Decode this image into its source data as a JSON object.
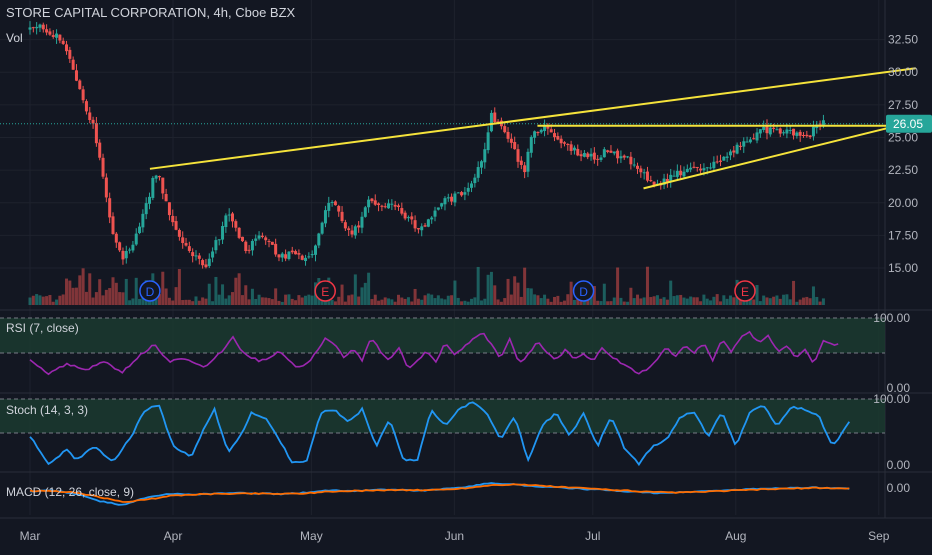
{
  "header": {
    "symbol_line": "STORE CAPITAL CORPORATION, 4h, Cboe BZX",
    "vol_label": "Vol"
  },
  "colors": {
    "background": "#131722",
    "grid": "#1e222d",
    "axis_text": "#b2b5be",
    "bull": "#26a69a",
    "bear": "#ef5350",
    "trendline": "#f5e33b",
    "price_tag_bg": "#26a69a",
    "rsi_line": "#9c27b0",
    "stoch_line": "#2196f3",
    "macd_line": "#2196f3",
    "signal_line": "#ff6d00",
    "band_fill": "#1b3a2f"
  },
  "events": [
    {
      "label": "D",
      "date": "Mar 27",
      "type": "dividend"
    },
    {
      "label": "E",
      "date": "May 4",
      "type": "earnings"
    },
    {
      "label": "D",
      "date": "Jun 29",
      "type": "dividend"
    },
    {
      "label": "E",
      "date": "Aug 3",
      "type": "earnings"
    }
  ],
  "panes": {
    "rsi": {
      "label": "RSI (7, close)",
      "ticks": [
        "100.00",
        "0.00"
      ]
    },
    "stoch": {
      "label": "Stoch (14, 3, 3)",
      "ticks": [
        "100.00",
        "0.00"
      ]
    },
    "macd": {
      "label": "MACD (12, 26, close, 9)",
      "ticks": [
        "0.00"
      ]
    }
  },
  "chart_data": {
    "type": "candlestick",
    "title": "STORE CAPITAL CORPORATION, 4h, Cboe BZX",
    "x_ticks": [
      "Mar",
      "Apr",
      "May",
      "Jun",
      "Jul",
      "Aug",
      "Sep"
    ],
    "y_ticks": [
      "32.50",
      "30.00",
      "27.50",
      "25.00",
      "22.50",
      "20.00",
      "17.50",
      "15.00"
    ],
    "ylim": [
      13.7,
      34.0
    ],
    "last_price": "26.05",
    "x_range_days": [
      0,
      194
    ],
    "x_tick_days": [
      0,
      31,
      61,
      92,
      122,
      153,
      184
    ],
    "price_anchors": [
      [
        0,
        33.2
      ],
      [
        3,
        33.5
      ],
      [
        6,
        32.6
      ],
      [
        8,
        31.5
      ],
      [
        10,
        29.5
      ],
      [
        12,
        27.5
      ],
      [
        14,
        25.5
      ],
      [
        16,
        21.5
      ],
      [
        18,
        17.5
      ],
      [
        20,
        15.6
      ],
      [
        22,
        16.8
      ],
      [
        24,
        18.5
      ],
      [
        26,
        20.5
      ],
      [
        27,
        22.3
      ],
      [
        28,
        21.8
      ],
      [
        30,
        19.2
      ],
      [
        32,
        17.9
      ],
      [
        34,
        16.6
      ],
      [
        36,
        15.9
      ],
      [
        38,
        15.2
      ],
      [
        40,
        16.7
      ],
      [
        42,
        18.2
      ],
      [
        43,
        19.5
      ],
      [
        45,
        17.5
      ],
      [
        47,
        16.2
      ],
      [
        49,
        17.4
      ],
      [
        51,
        17.1
      ],
      [
        53,
        16.3
      ],
      [
        55,
        15.9
      ],
      [
        57,
        16.0
      ],
      [
        59,
        15.7
      ],
      [
        61,
        16.2
      ],
      [
        63,
        17.9
      ],
      [
        65,
        20.3
      ],
      [
        66,
        19.7
      ],
      [
        68,
        18.4
      ],
      [
        70,
        17.6
      ],
      [
        72,
        18.9
      ],
      [
        74,
        20.4
      ],
      [
        76,
        19.3
      ],
      [
        78,
        20.2
      ],
      [
        80,
        19.6
      ],
      [
        82,
        18.7
      ],
      [
        84,
        18.1
      ],
      [
        86,
        18.4
      ],
      [
        88,
        19.2
      ],
      [
        90,
        20.1
      ],
      [
        92,
        20.4
      ],
      [
        94,
        20.9
      ],
      [
        96,
        21.8
      ],
      [
        98,
        23.4
      ],
      [
        100,
        26.6
      ],
      [
        101,
        26.1
      ],
      [
        103,
        25.3
      ],
      [
        105,
        24.2
      ],
      [
        107,
        22.1
      ],
      [
        109,
        25.3
      ],
      [
        111,
        25.9
      ],
      [
        113,
        25.4
      ],
      [
        115,
        24.6
      ],
      [
        117,
        24.3
      ],
      [
        119,
        23.6
      ],
      [
        121,
        23.8
      ],
      [
        123,
        23.5
      ],
      [
        125,
        24.0
      ],
      [
        127,
        23.7
      ],
      [
        129,
        23.4
      ],
      [
        131,
        23.0
      ],
      [
        133,
        22.1
      ],
      [
        135,
        21.4
      ],
      [
        137,
        21.6
      ],
      [
        139,
        22.0
      ],
      [
        141,
        22.3
      ],
      [
        143,
        22.5
      ],
      [
        145,
        22.4
      ],
      [
        147,
        22.7
      ],
      [
        149,
        23.0
      ],
      [
        151,
        23.5
      ],
      [
        153,
        24.1
      ],
      [
        155,
        24.5
      ],
      [
        157,
        25.0
      ],
      [
        159,
        25.6
      ],
      [
        161,
        25.5
      ],
      [
        163,
        25.4
      ],
      [
        165,
        25.3
      ],
      [
        167,
        25.1
      ],
      [
        169,
        25.0
      ],
      [
        170,
        25.9
      ],
      [
        172,
        26.05
      ]
    ],
    "trendlines": [
      {
        "from": {
          "day": 26,
          "price": 22.6
        },
        "to": {
          "day": 192,
          "price": 30.3
        }
      },
      {
        "from": {
          "day": 110,
          "price": 25.9
        },
        "to": {
          "day": 188,
          "price": 25.9
        }
      },
      {
        "from": {
          "day": 133,
          "price": 21.1
        },
        "to": {
          "day": 188,
          "price": 25.9
        }
      }
    ],
    "rsi_anchors": [
      [
        0,
        40
      ],
      [
        4,
        20
      ],
      [
        8,
        35
      ],
      [
        12,
        25
      ],
      [
        16,
        38
      ],
      [
        20,
        22
      ],
      [
        24,
        48
      ],
      [
        27,
        62
      ],
      [
        30,
        38
      ],
      [
        34,
        42
      ],
      [
        38,
        30
      ],
      [
        42,
        55
      ],
      [
        44,
        72
      ],
      [
        46,
        50
      ],
      [
        50,
        38
      ],
      [
        54,
        52
      ],
      [
        58,
        28
      ],
      [
        60,
        35
      ],
      [
        62,
        50
      ],
      [
        64,
        70
      ],
      [
        66,
        62
      ],
      [
        68,
        45
      ],
      [
        70,
        55
      ],
      [
        72,
        40
      ],
      [
        74,
        72
      ],
      [
        76,
        52
      ],
      [
        78,
        40
      ],
      [
        80,
        58
      ],
      [
        82,
        28
      ],
      [
        84,
        40
      ],
      [
        86,
        52
      ],
      [
        88,
        38
      ],
      [
        90,
        64
      ],
      [
        92,
        48
      ],
      [
        94,
        58
      ],
      [
        96,
        70
      ],
      [
        98,
        80
      ],
      [
        100,
        62
      ],
      [
        102,
        42
      ],
      [
        104,
        70
      ],
      [
        106,
        34
      ],
      [
        108,
        48
      ],
      [
        110,
        66
      ],
      [
        112,
        52
      ],
      [
        114,
        40
      ],
      [
        116,
        54
      ],
      [
        118,
        42
      ],
      [
        120,
        50
      ],
      [
        122,
        38
      ],
      [
        124,
        58
      ],
      [
        126,
        46
      ],
      [
        128,
        36
      ],
      [
        130,
        30
      ],
      [
        132,
        20
      ],
      [
        134,
        28
      ],
      [
        136,
        42
      ],
      [
        138,
        58
      ],
      [
        140,
        44
      ],
      [
        142,
        62
      ],
      [
        144,
        50
      ],
      [
        146,
        64
      ],
      [
        148,
        40
      ],
      [
        150,
        70
      ],
      [
        152,
        50
      ],
      [
        154,
        72
      ],
      [
        156,
        80
      ],
      [
        158,
        64
      ],
      [
        160,
        76
      ],
      [
        162,
        52
      ],
      [
        164,
        60
      ],
      [
        166,
        44
      ],
      [
        168,
        56
      ],
      [
        170,
        34
      ],
      [
        172,
        68
      ],
      [
        174,
        62
      ],
      [
        176,
        64
      ]
    ],
    "stoch_anchors": [
      [
        0,
        45
      ],
      [
        4,
        5
      ],
      [
        8,
        25
      ],
      [
        10,
        10
      ],
      [
        14,
        30
      ],
      [
        18,
        8
      ],
      [
        22,
        45
      ],
      [
        25,
        85
      ],
      [
        28,
        90
      ],
      [
        31,
        30
      ],
      [
        35,
        15
      ],
      [
        38,
        60
      ],
      [
        40,
        85
      ],
      [
        43,
        20
      ],
      [
        46,
        50
      ],
      [
        48,
        80
      ],
      [
        51,
        72
      ],
      [
        54,
        40
      ],
      [
        57,
        5
      ],
      [
        60,
        10
      ],
      [
        63,
        80
      ],
      [
        66,
        85
      ],
      [
        69,
        65
      ],
      [
        72,
        85
      ],
      [
        75,
        30
      ],
      [
        78,
        70
      ],
      [
        81,
        10
      ],
      [
        84,
        10
      ],
      [
        87,
        85
      ],
      [
        90,
        60
      ],
      [
        93,
        85
      ],
      [
        96,
        95
      ],
      [
        99,
        80
      ],
      [
        102,
        40
      ],
      [
        105,
        75
      ],
      [
        108,
        10
      ],
      [
        111,
        60
      ],
      [
        114,
        80
      ],
      [
        117,
        45
      ],
      [
        120,
        80
      ],
      [
        123,
        30
      ],
      [
        126,
        75
      ],
      [
        129,
        25
      ],
      [
        132,
        5
      ],
      [
        135,
        30
      ],
      [
        138,
        40
      ],
      [
        141,
        75
      ],
      [
        144,
        80
      ],
      [
        147,
        45
      ],
      [
        150,
        82
      ],
      [
        153,
        30
      ],
      [
        156,
        80
      ],
      [
        159,
        90
      ],
      [
        162,
        60
      ],
      [
        165,
        88
      ],
      [
        168,
        85
      ],
      [
        171,
        75
      ],
      [
        174,
        30
      ],
      [
        176,
        50
      ],
      [
        178,
        70
      ]
    ],
    "macd_anchors": [
      [
        0,
        -0.15
      ],
      [
        5,
        -0.05
      ],
      [
        10,
        -0.4
      ],
      [
        15,
        -1.1
      ],
      [
        20,
        -1.5
      ],
      [
        25,
        -0.8
      ],
      [
        30,
        -0.4
      ],
      [
        35,
        -0.45
      ],
      [
        40,
        -0.35
      ],
      [
        45,
        -0.3
      ],
      [
        50,
        -0.35
      ],
      [
        55,
        -0.4
      ],
      [
        60,
        -0.25
      ],
      [
        65,
        -0.05
      ],
      [
        70,
        -0.1
      ],
      [
        75,
        0.05
      ],
      [
        80,
        0.0
      ],
      [
        85,
        -0.05
      ],
      [
        90,
        0.1
      ],
      [
        95,
        0.35
      ],
      [
        100,
        0.7
      ],
      [
        105,
        0.55
      ],
      [
        110,
        0.35
      ],
      [
        115,
        0.25
      ],
      [
        120,
        0.1
      ],
      [
        125,
        0.0
      ],
      [
        130,
        -0.15
      ],
      [
        135,
        -0.3
      ],
      [
        140,
        -0.25
      ],
      [
        145,
        -0.15
      ],
      [
        150,
        -0.05
      ],
      [
        155,
        0.05
      ],
      [
        160,
        0.15
      ],
      [
        165,
        0.2
      ],
      [
        170,
        0.25
      ],
      [
        175,
        0.15
      ],
      [
        178,
        0.1
      ]
    ],
    "signal_anchors": [
      [
        0,
        -0.1
      ],
      [
        5,
        -0.1
      ],
      [
        10,
        -0.25
      ],
      [
        15,
        -0.7
      ],
      [
        20,
        -1.2
      ],
      [
        25,
        -1.0
      ],
      [
        30,
        -0.6
      ],
      [
        35,
        -0.45
      ],
      [
        40,
        -0.4
      ],
      [
        45,
        -0.35
      ],
      [
        50,
        -0.35
      ],
      [
        55,
        -0.38
      ],
      [
        60,
        -0.32
      ],
      [
        65,
        -0.15
      ],
      [
        70,
        -0.1
      ],
      [
        75,
        -0.02
      ],
      [
        80,
        0.0
      ],
      [
        85,
        -0.02
      ],
      [
        90,
        0.05
      ],
      [
        95,
        0.2
      ],
      [
        100,
        0.5
      ],
      [
        105,
        0.55
      ],
      [
        110,
        0.45
      ],
      [
        115,
        0.3
      ],
      [
        120,
        0.18
      ],
      [
        125,
        0.05
      ],
      [
        130,
        -0.08
      ],
      [
        135,
        -0.22
      ],
      [
        140,
        -0.25
      ],
      [
        145,
        -0.2
      ],
      [
        150,
        -0.1
      ],
      [
        155,
        0.0
      ],
      [
        160,
        0.08
      ],
      [
        165,
        0.15
      ],
      [
        170,
        0.2
      ],
      [
        175,
        0.18
      ],
      [
        178,
        0.14
      ]
    ]
  }
}
